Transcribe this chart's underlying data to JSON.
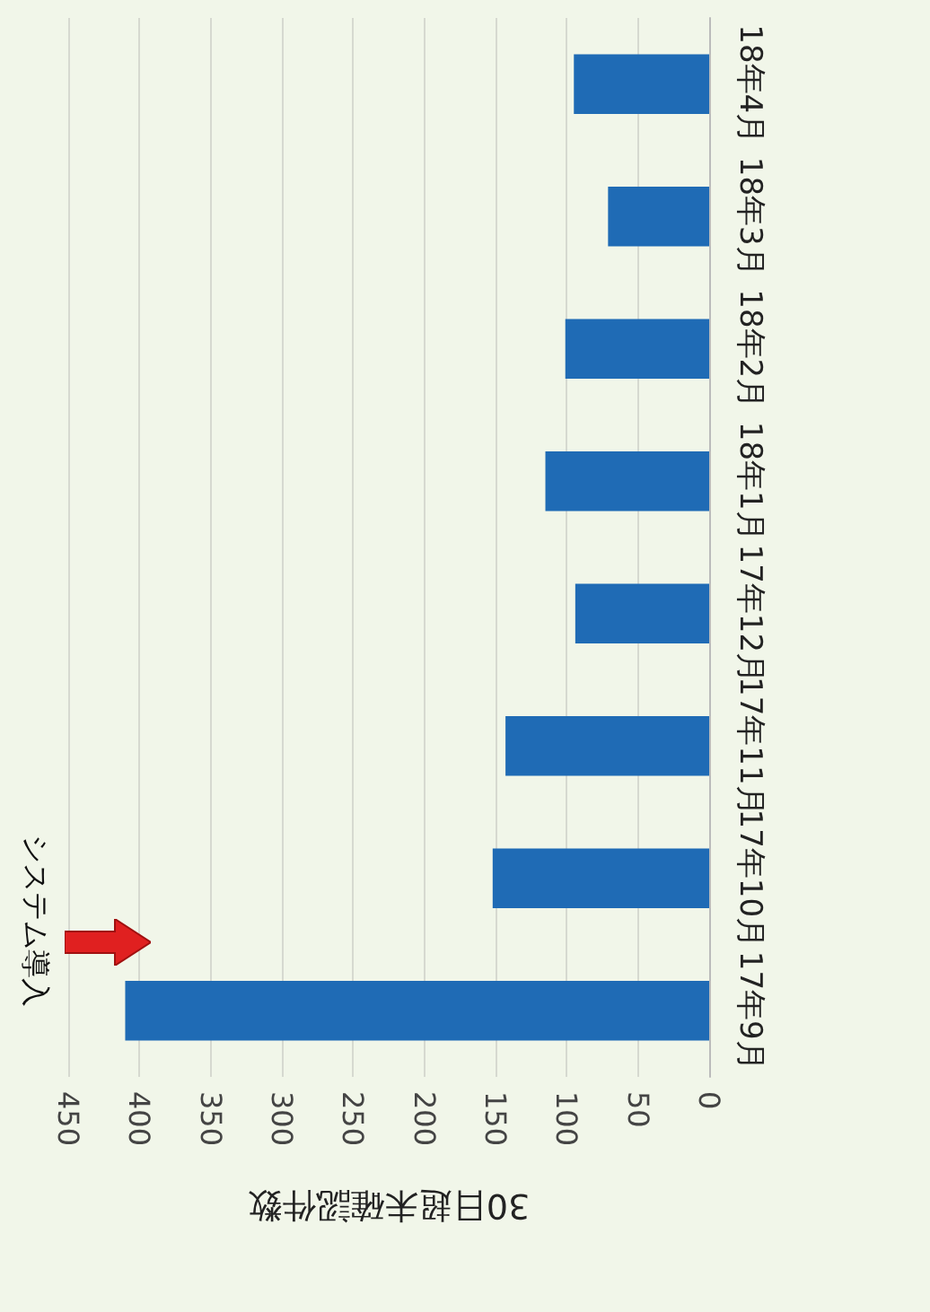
{
  "chart_data": {
    "type": "bar",
    "orientation": "horizontal",
    "xlabel": "30日超未確認件数",
    "categories": [
      "18年4月",
      "18年3月",
      "18年2月",
      "18年1月",
      "17年12月",
      "17年11月",
      "17年10月",
      "17年9月"
    ],
    "values": [
      95,
      71,
      101,
      115,
      94,
      143,
      152,
      410
    ],
    "color": "#1f6bb5",
    "xlim": [
      450,
      0
    ],
    "xticks": [
      0,
      50,
      100,
      150,
      200,
      250,
      300,
      350,
      400,
      450
    ],
    "grid": "x",
    "annotations": [
      "システム導入"
    ]
  }
}
